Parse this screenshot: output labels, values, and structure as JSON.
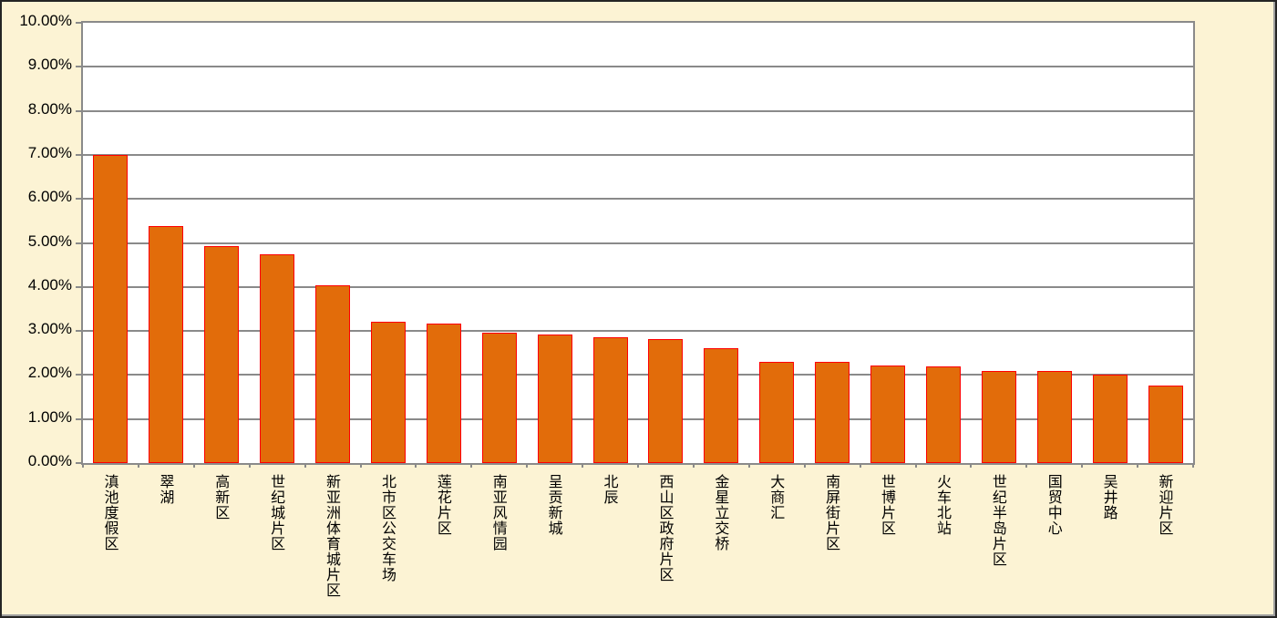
{
  "chart_data": {
    "type": "bar",
    "title": "",
    "xlabel": "",
    "ylabel": "",
    "categories": [
      "滇池度假区",
      "翠湖",
      "高新区",
      "世纪城片区",
      "新亚洲体育城片区",
      "北市区公交车场",
      "莲花片区",
      "南亚风情园",
      "呈贡新城",
      "北辰",
      "西山区政府片区",
      "金星立交桥",
      "大商汇",
      "南屏街片区",
      "世博片区",
      "火车北站",
      "世纪半岛片区",
      "国贸中心",
      "吴井路",
      "新迎片区"
    ],
    "values": [
      7.0,
      5.38,
      4.93,
      4.74,
      4.03,
      3.2,
      3.16,
      2.96,
      2.92,
      2.85,
      2.81,
      2.6,
      2.3,
      2.3,
      2.21,
      2.19,
      2.1,
      2.1,
      2.0,
      1.76
    ],
    "ylim": [
      0,
      10
    ],
    "ytick_step": 1,
    "yticks": [
      "0.00%",
      "1.00%",
      "2.00%",
      "3.00%",
      "4.00%",
      "5.00%",
      "6.00%",
      "7.00%",
      "8.00%",
      "9.00%",
      "10.00%"
    ],
    "grid": true,
    "legend": false,
    "colors": {
      "background": "#FCF3D4",
      "plot_background": "#FFFFFF",
      "bar_fill": "#E26C0A",
      "bar_border": "#FF0000",
      "gridline": "#8A8A8A",
      "axis_line": "#8A8A8A",
      "text": "#000000"
    }
  }
}
